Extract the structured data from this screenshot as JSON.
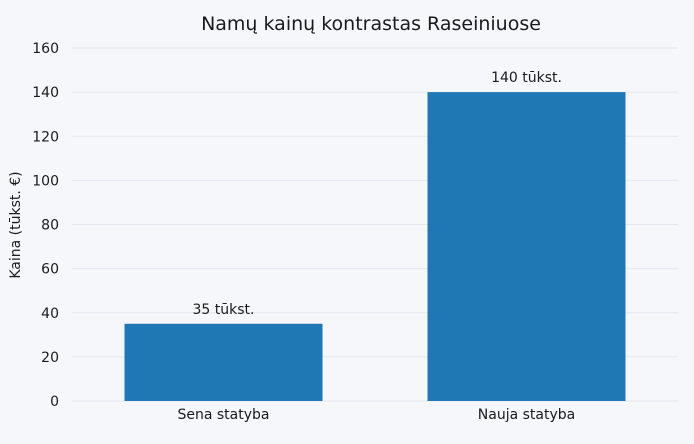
{
  "chart_data": {
    "type": "bar",
    "title": "Namų kainų kontrastas Raseiniuose",
    "xlabel": "",
    "ylabel": "Kaina (tūkst. €)",
    "categories": [
      "Sena statyba",
      "Nauja statyba"
    ],
    "values": [
      35,
      140
    ],
    "data_labels": [
      "35 tūkst.",
      "140 tūkst."
    ],
    "ylim": [
      0,
      160
    ],
    "yticks": [
      "0",
      "20",
      "40",
      "60",
      "80",
      "100",
      "120",
      "140",
      "160"
    ],
    "grid": true,
    "colors": {
      "bar": "#1f77b4",
      "background": "#f5f7fb",
      "grid": "#e4e8f0"
    }
  }
}
